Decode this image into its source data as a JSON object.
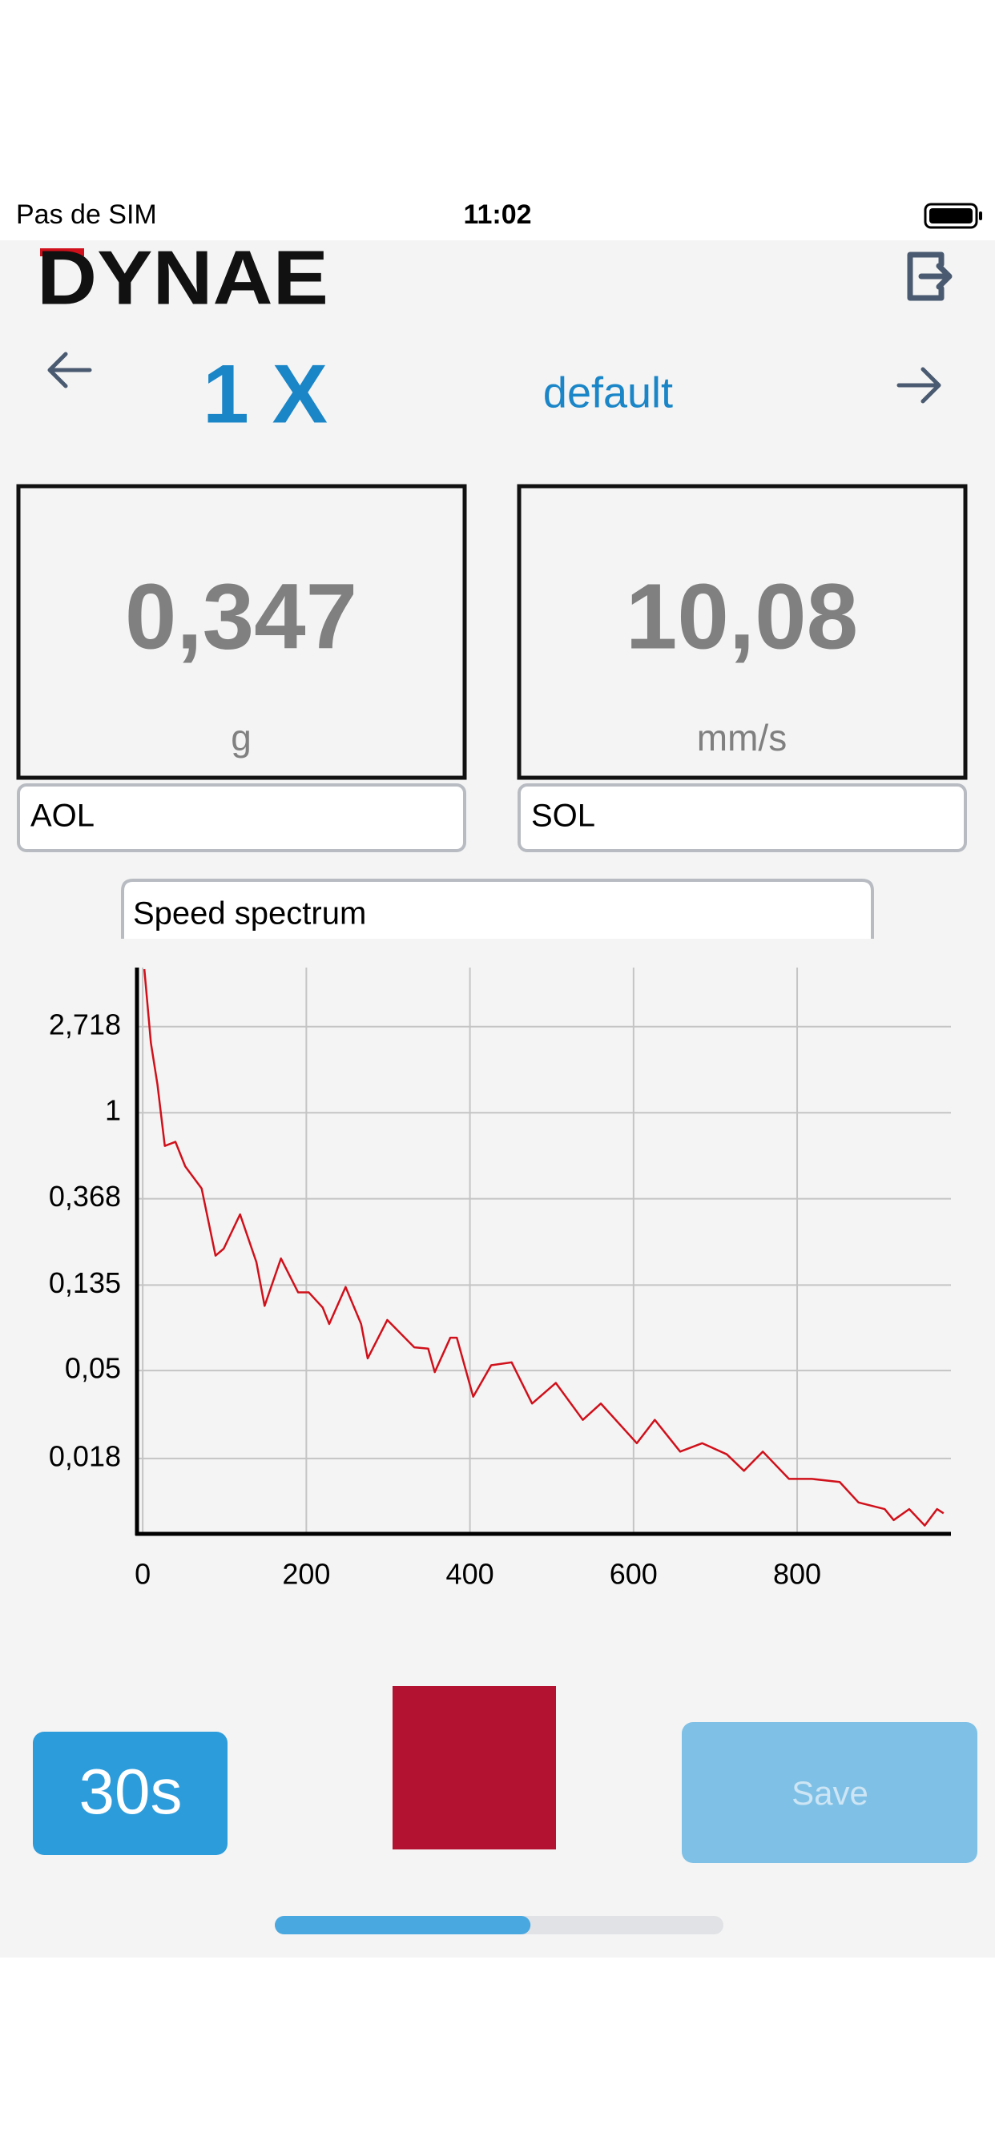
{
  "status_bar": {
    "carrier": "Pas de SIM",
    "time": "11:02"
  },
  "header": {
    "logo": "DYNAE"
  },
  "nav": {
    "channel": "1 X",
    "profile": "default"
  },
  "readings": [
    {
      "value": "0,347",
      "unit": "g",
      "label": "AOL"
    },
    {
      "value": "10,08",
      "unit": "mm/s",
      "label": "SOL"
    }
  ],
  "spectrum_label": "Speed spectrum",
  "chart_data": {
    "type": "line",
    "x": [
      2,
      10,
      18,
      27,
      40,
      52,
      72,
      89,
      99,
      119,
      139,
      149,
      169,
      190,
      203,
      220,
      228,
      248,
      267,
      275,
      299,
      332,
      349,
      357,
      376,
      384,
      404,
      426,
      451,
      476,
      505,
      538,
      560,
      604,
      626,
      657,
      684,
      714,
      735,
      758,
      790,
      818,
      852,
      875,
      907,
      918,
      937,
      956,
      971,
      979
    ],
    "series": [
      {
        "color": "#d0101a",
        "values": [
          5.3,
          2.25,
          1.39,
          0.68,
          0.713,
          0.536,
          0.415,
          0.19,
          0.206,
          0.307,
          0.176,
          0.106,
          0.184,
          0.124,
          0.124,
          0.104,
          0.0859,
          0.132,
          0.0859,
          0.0576,
          0.09,
          0.0655,
          0.0645,
          0.0491,
          0.0732,
          0.0732,
          0.0369,
          0.0532,
          0.055,
          0.0341,
          0.0433,
          0.0282,
          0.0341,
          0.0215,
          0.0282,
          0.0195,
          0.0215,
          0.0189,
          0.0156,
          0.0195,
          0.0142,
          0.0142,
          0.0137,
          0.0108,
          0.01,
          0.0088,
          0.01,
          0.00826,
          0.01,
          0.00953
        ]
      }
    ],
    "xlim": [
      -7,
      988
    ],
    "ylim": [
      0.0075,
      5.4
    ],
    "xticks": [
      0,
      200,
      400,
      600,
      800
    ],
    "yticks": [
      {
        "value": 2.718,
        "label": "2,718"
      },
      1,
      {
        "value": 0.368,
        "label": "0,368"
      },
      {
        "value": 0.135,
        "label": "0,135"
      },
      {
        "value": 0.05,
        "label": "0,05"
      },
      {
        "value": 0.018,
        "label": "0,018"
      }
    ],
    "log_y": true,
    "grid": true
  },
  "buttons": {
    "timer": "30s",
    "save": "Save"
  },
  "progress": 0.57
}
